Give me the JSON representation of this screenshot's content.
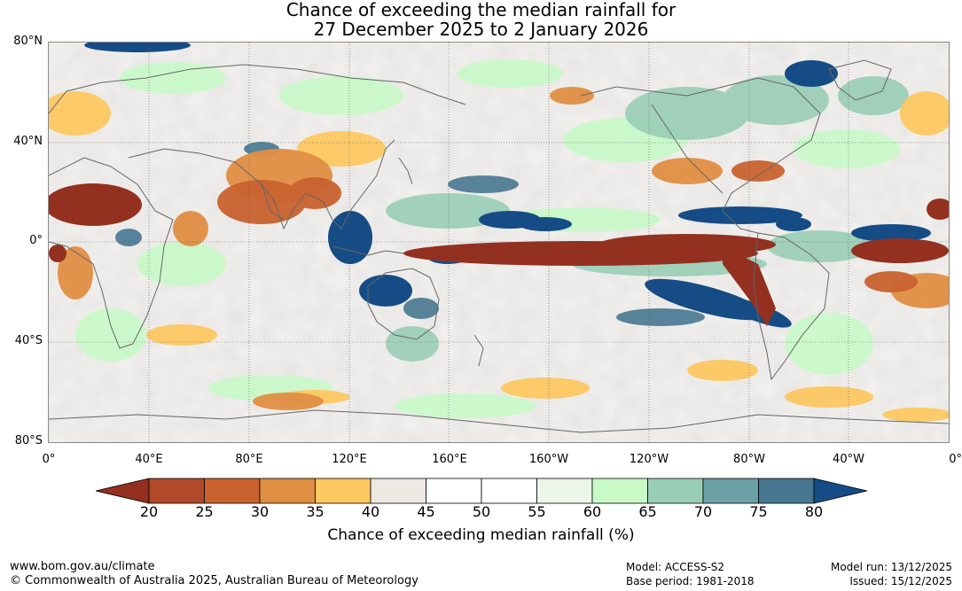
{
  "title": {
    "line1": "Chance of exceeding the median rainfall for",
    "line2": "27 December 2025 to 2 January 2026"
  },
  "map": {
    "lat_labels": [
      "80°N",
      "40°N",
      "0°",
      "40°S",
      "80°S"
    ],
    "lon_labels": [
      "0°",
      "40°E",
      "80°E",
      "120°E",
      "160°E",
      "160°W",
      "120°W",
      "80°W",
      "40°W",
      "0°"
    ]
  },
  "colorbar": {
    "ticks": [
      "20",
      "25",
      "30",
      "35",
      "40",
      "45",
      "50",
      "55",
      "60",
      "65",
      "70",
      "75",
      "80"
    ],
    "colors": [
      "#943020",
      "#b04a28",
      "#c9622f",
      "#e08e42",
      "#fdc862",
      "#ece8e2",
      "#ffffff",
      "#ffffff",
      "#ebf6e8",
      "#c8fac8",
      "#99cdb6",
      "#6aa0a6",
      "#477790",
      "#154c85"
    ],
    "label": "Chance of exceeding median rainfall (%)"
  },
  "footer": {
    "website": "www.bom.gov.au/climate",
    "copyright": "© Commonwealth of Australia 2025, Australian Bureau of Meteorology",
    "model": "Model: ACCESS-S2",
    "base_period": "Base period: 1981-2018",
    "model_run": "Model run: 13/12/2025",
    "issued": "Issued: 15/12/2025"
  }
}
